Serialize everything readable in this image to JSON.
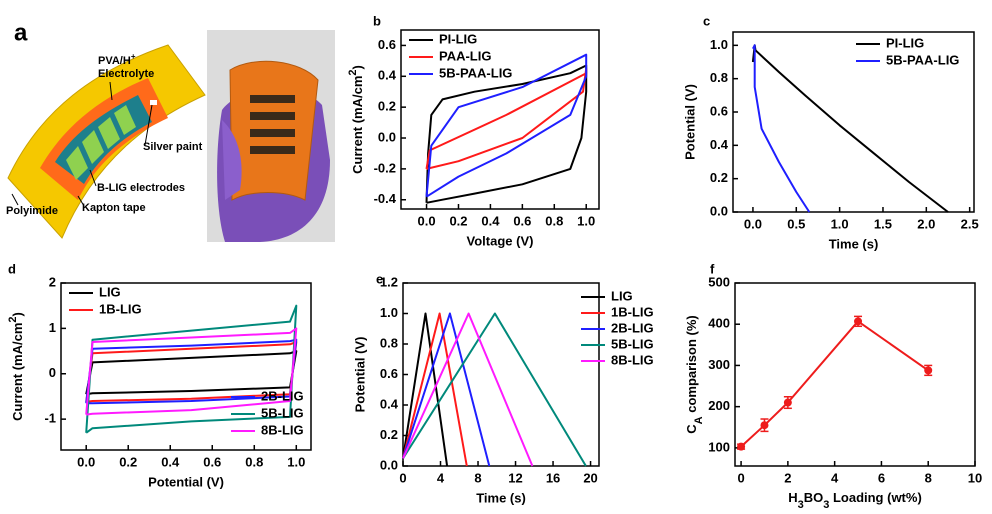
{
  "panel_a": {
    "letter": "a",
    "electrolyte": [
      {
        "text": "PVA/H"
      },
      {
        "text": "+",
        "sup": true
      }
    ],
    "electrolyte_line2": "Electrolyte",
    "silver": "Silver paint",
    "electrodes": "B-LIG electrodes",
    "tape": "Kapton tape",
    "substrate": "Polyimide"
  },
  "chart_data": [
    {
      "panel": "b",
      "type": "line",
      "xlabel": "Voltage (V)",
      "ylabel": [
        {
          "text": "Current (mA/cm"
        },
        {
          "text": "2",
          "sup": true
        },
        {
          "text": ")"
        }
      ],
      "xlim": [
        -0.16,
        1.08
      ],
      "xticks": [
        {
          "value": 0,
          "label": "0.0"
        },
        0.2,
        0.4,
        0.6,
        0.8,
        {
          "value": 1,
          "label": "1.0"
        }
      ],
      "ylim": [
        -0.46,
        0.7
      ],
      "yticks": [
        -0.4,
        -0.2,
        {
          "value": 0,
          "label": "0.0"
        },
        0.2,
        0.4,
        0.6
      ],
      "legend": "upper left",
      "series": [
        {
          "name": "PI-LIG",
          "color": "#000000",
          "x": [
            0,
            0.01,
            0.03,
            0.1,
            0.3,
            0.6,
            0.9,
            1.0,
            1.0,
            0.97,
            0.9,
            0.6,
            0.3,
            0.1,
            0
          ],
          "values": [
            -0.42,
            -0.1,
            0.15,
            0.25,
            0.3,
            0.35,
            0.42,
            0.47,
            0.3,
            0.0,
            -0.2,
            -0.3,
            -0.36,
            -0.4,
            -0.42
          ]
        },
        {
          "name": "PAA-LIG",
          "color": "#ff1a1a",
          "x": [
            0,
            0.02,
            0.5,
            1.0,
            1.0,
            0.98,
            0.6,
            0.2,
            0
          ],
          "values": [
            -0.2,
            -0.08,
            0.15,
            0.42,
            0.45,
            0.3,
            0.0,
            -0.15,
            -0.2
          ]
        },
        {
          "name": "5B-PAA-LIG",
          "color": "#1f1fff",
          "x": [
            0,
            0.03,
            0.2,
            0.6,
            1.0,
            1.0,
            0.9,
            0.5,
            0.2,
            0
          ],
          "values": [
            -0.38,
            -0.05,
            0.2,
            0.33,
            0.54,
            0.4,
            0.15,
            -0.1,
            -0.25,
            -0.38
          ]
        }
      ]
    },
    {
      "panel": "c",
      "type": "line",
      "xlabel": "Time (s)",
      "ylabel": "Potential (V)",
      "xlim": [
        -0.23,
        2.55
      ],
      "xticks": [
        {
          "value": 0,
          "label": "0.0"
        },
        0.5,
        {
          "value": 1,
          "label": "1.0"
        },
        1.5,
        {
          "value": 2,
          "label": "2.0"
        },
        2.5
      ],
      "ylim": [
        0,
        1.08
      ],
      "yticks": [
        {
          "value": 0,
          "label": "0.0"
        },
        0.2,
        0.4,
        0.6,
        0.8,
        {
          "value": 1,
          "label": "1.0"
        }
      ],
      "legend": "upper right",
      "legend_colored_text": true,
      "series": [
        {
          "name": "PI-LIG",
          "color": "#000000",
          "x": [
            0,
            0.02,
            0.03,
            0.3,
            0.6,
            1.0,
            1.4,
            1.8,
            2.25
          ],
          "values": [
            0.9,
            1.0,
            0.97,
            0.84,
            0.7,
            0.52,
            0.35,
            0.18,
            0
          ]
        },
        {
          "name": "5B-PAA-LIG",
          "color": "#1f1fff",
          "x": [
            0,
            0.02,
            0.02,
            0.1,
            0.3,
            0.5,
            0.65
          ],
          "values": [
            0.98,
            1.0,
            0.75,
            0.5,
            0.3,
            0.12,
            0
          ]
        }
      ]
    },
    {
      "panel": "d",
      "type": "line",
      "xlabel": "Potential (V)",
      "ylabel": [
        {
          "text": "Current (mA/cm"
        },
        {
          "text": "2",
          "sup": true
        },
        {
          "text": ")"
        }
      ],
      "xlim": [
        -0.12,
        1.07
      ],
      "xticks": [
        {
          "value": 0,
          "label": "0.0"
        },
        0.2,
        0.4,
        0.6,
        0.8,
        {
          "value": 1,
          "label": "1.0"
        }
      ],
      "ylim": [
        -1.68,
        2
      ],
      "yticks": [
        -1,
        0,
        1,
        2
      ],
      "series": [
        {
          "name": "LIG",
          "color": "#000000",
          "legend": "upper left",
          "x": [
            0,
            0.03,
            0.5,
            0.97,
            1.0,
            0.97,
            0.5,
            0.03,
            0
          ],
          "values": [
            -0.45,
            0.25,
            0.35,
            0.45,
            0.5,
            -0.3,
            -0.38,
            -0.43,
            -0.45
          ]
        },
        {
          "name": "1B-LIG",
          "color": "#ff1a1a",
          "legend": "upper left",
          "x": [
            0,
            0.03,
            0.5,
            0.97,
            1.0,
            0.97,
            0.5,
            0.03,
            0
          ],
          "values": [
            -0.62,
            0.45,
            0.55,
            0.65,
            0.7,
            -0.45,
            -0.55,
            -0.6,
            -0.62
          ]
        },
        {
          "name": "2B-LIG",
          "color": "#1f1fff",
          "legend": "lower right",
          "x": [
            0,
            0.03,
            0.5,
            0.97,
            1.0,
            0.97,
            0.5,
            0.03,
            0
          ],
          "values": [
            -0.65,
            0.55,
            0.62,
            0.72,
            0.75,
            -0.5,
            -0.6,
            -0.65,
            -0.65
          ]
        },
        {
          "name": "5B-LIG",
          "color": "#00897b",
          "legend": "lower right",
          "x": [
            0,
            0.03,
            0.5,
            0.97,
            1.0,
            0.97,
            0.5,
            0.03,
            0
          ],
          "values": [
            -1.3,
            0.75,
            0.95,
            1.15,
            1.5,
            -0.95,
            -1.05,
            -1.2,
            -1.3
          ]
        },
        {
          "name": "8B-LIG",
          "color": "#ff1aff",
          "legend": "lower right",
          "x": [
            0,
            0.03,
            0.5,
            0.97,
            1.0,
            0.97,
            0.5,
            0.03,
            0
          ],
          "values": [
            -0.9,
            0.7,
            0.8,
            0.9,
            1.0,
            -0.6,
            -0.8,
            -0.88,
            -0.9
          ]
        }
      ]
    },
    {
      "panel": "e",
      "type": "line",
      "xlabel": "Time (s)",
      "ylabel": "Potential (V)",
      "xlim": [
        0,
        20.9
      ],
      "xticks": [
        0,
        4,
        8,
        12,
        16,
        20
      ],
      "ylim": [
        0,
        1.2
      ],
      "yticks": [
        {
          "value": 0,
          "label": "0.0"
        },
        0.2,
        0.4,
        0.6,
        0.8,
        {
          "value": 1,
          "label": "1.0"
        },
        1.2
      ],
      "legend": "right",
      "legend_colored_text": true,
      "series": [
        {
          "name": "LIG",
          "color": "#000000",
          "x": [
            0,
            2.4,
            4.7
          ],
          "values": [
            0.05,
            1.0,
            0
          ]
        },
        {
          "name": "1B-LIG",
          "color": "#ff1a1a",
          "x": [
            0,
            3.9,
            6.8
          ],
          "values": [
            0.05,
            1.0,
            0
          ]
        },
        {
          "name": "2B-LIG",
          "color": "#1f1fff",
          "x": [
            0,
            5.0,
            9.2
          ],
          "values": [
            0.05,
            1.0,
            0
          ]
        },
        {
          "name": "5B-LIG",
          "color": "#00897b",
          "x": [
            0,
            9.8,
            19.5
          ],
          "values": [
            0.05,
            1.0,
            0
          ]
        },
        {
          "name": "8B-LIG",
          "color": "#ff1aff",
          "x": [
            0,
            7.0,
            13.8
          ],
          "values": [
            0.05,
            1.0,
            0
          ]
        }
      ]
    },
    {
      "panel": "f",
      "type": "line",
      "markers": true,
      "xlabel": [
        {
          "text": "H"
        },
        {
          "text": "3",
          "sub": true
        },
        {
          "text": "BO"
        },
        {
          "text": "3",
          "sub": true
        },
        {
          "text": " Loading (wt%)"
        }
      ],
      "ylabel": [
        {
          "text": "C"
        },
        {
          "text": "A",
          "sub": true
        },
        {
          "text": " comparison (%)"
        }
      ],
      "xlim": [
        -0.26,
        10
      ],
      "xticks": [
        0,
        2,
        4,
        6,
        8,
        10
      ],
      "ylim": [
        56,
        500
      ],
      "yticks": [
        100,
        200,
        300,
        400,
        500
      ],
      "series": [
        {
          "color": "#ee1c1c",
          "x": [
            0,
            1,
            2,
            5,
            8
          ],
          "values": [
            103,
            155,
            210,
            407,
            288
          ],
          "errors": [
            6,
            15,
            14,
            12,
            12
          ]
        }
      ]
    }
  ]
}
